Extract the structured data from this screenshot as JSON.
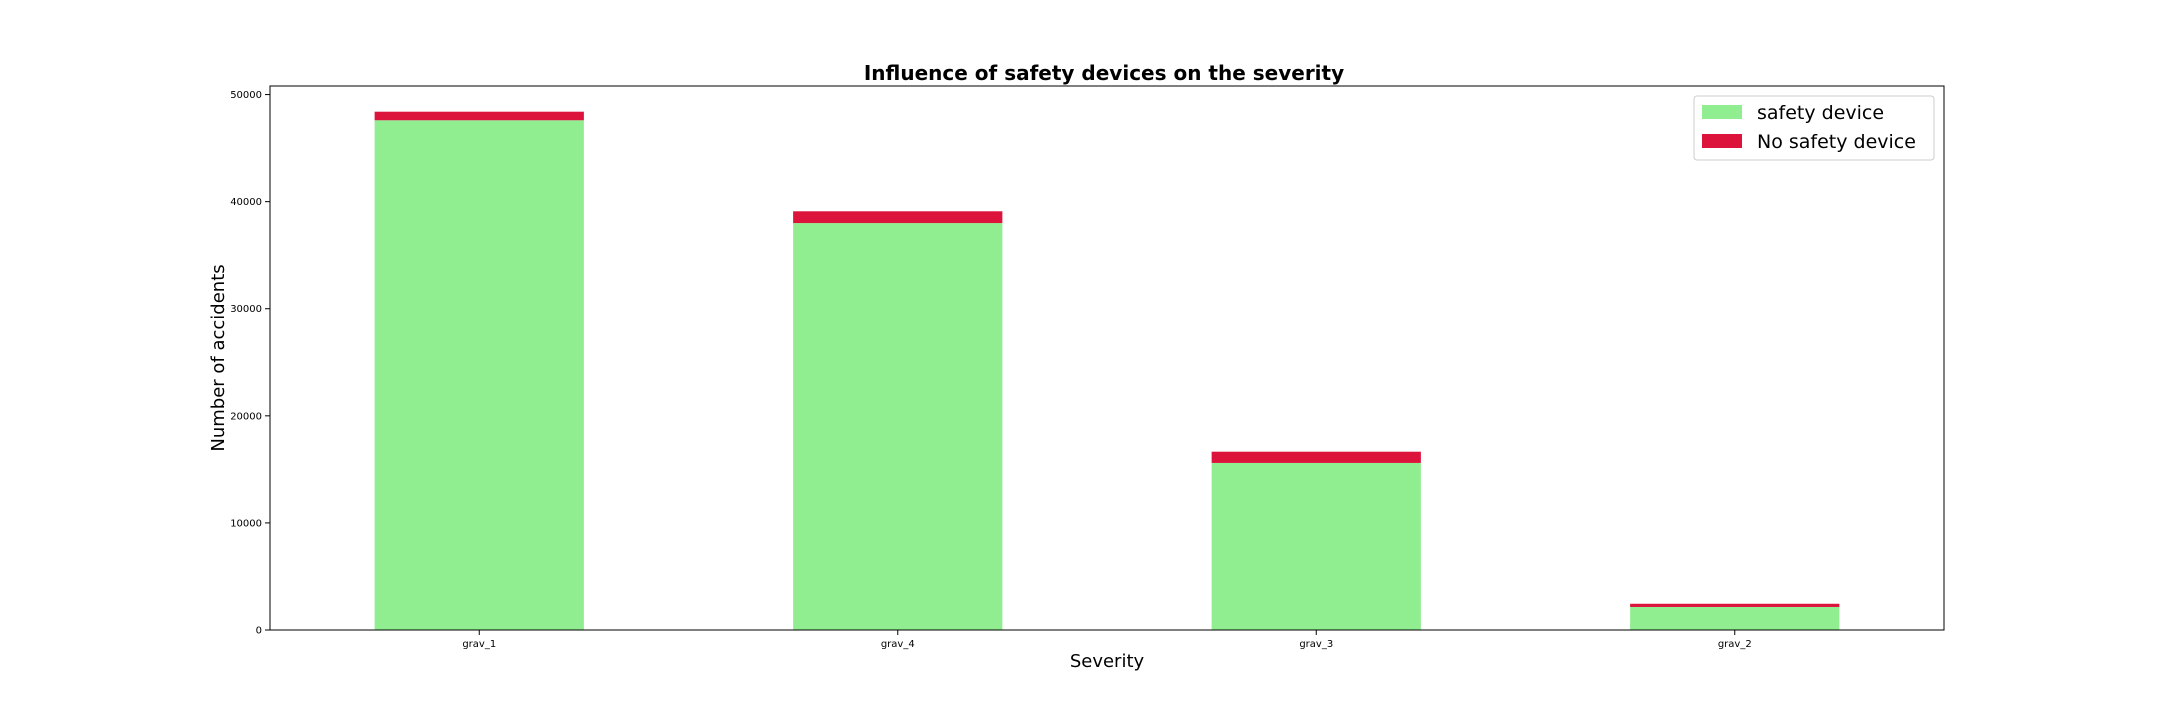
{
  "chart_data": {
    "type": "bar",
    "stacked": true,
    "title": "Influence of safety devices on the severity",
    "xlabel": "Severity",
    "ylabel": "Number of accidents",
    "categories": [
      "grav_1",
      "grav_4",
      "grav_3",
      "grav_2"
    ],
    "series": [
      {
        "name": "safety device",
        "color": "#90EE90",
        "values": [
          47600,
          38000,
          15600,
          2150
        ]
      },
      {
        "name": "No safety device",
        "color": "#DC143C",
        "values": [
          800,
          1100,
          1050,
          300
        ]
      }
    ],
    "ylim": [
      0,
      50800
    ],
    "yticks": [
      0,
      10000,
      20000,
      30000,
      40000,
      50000
    ],
    "grid": false,
    "legend_position": "top-right"
  }
}
